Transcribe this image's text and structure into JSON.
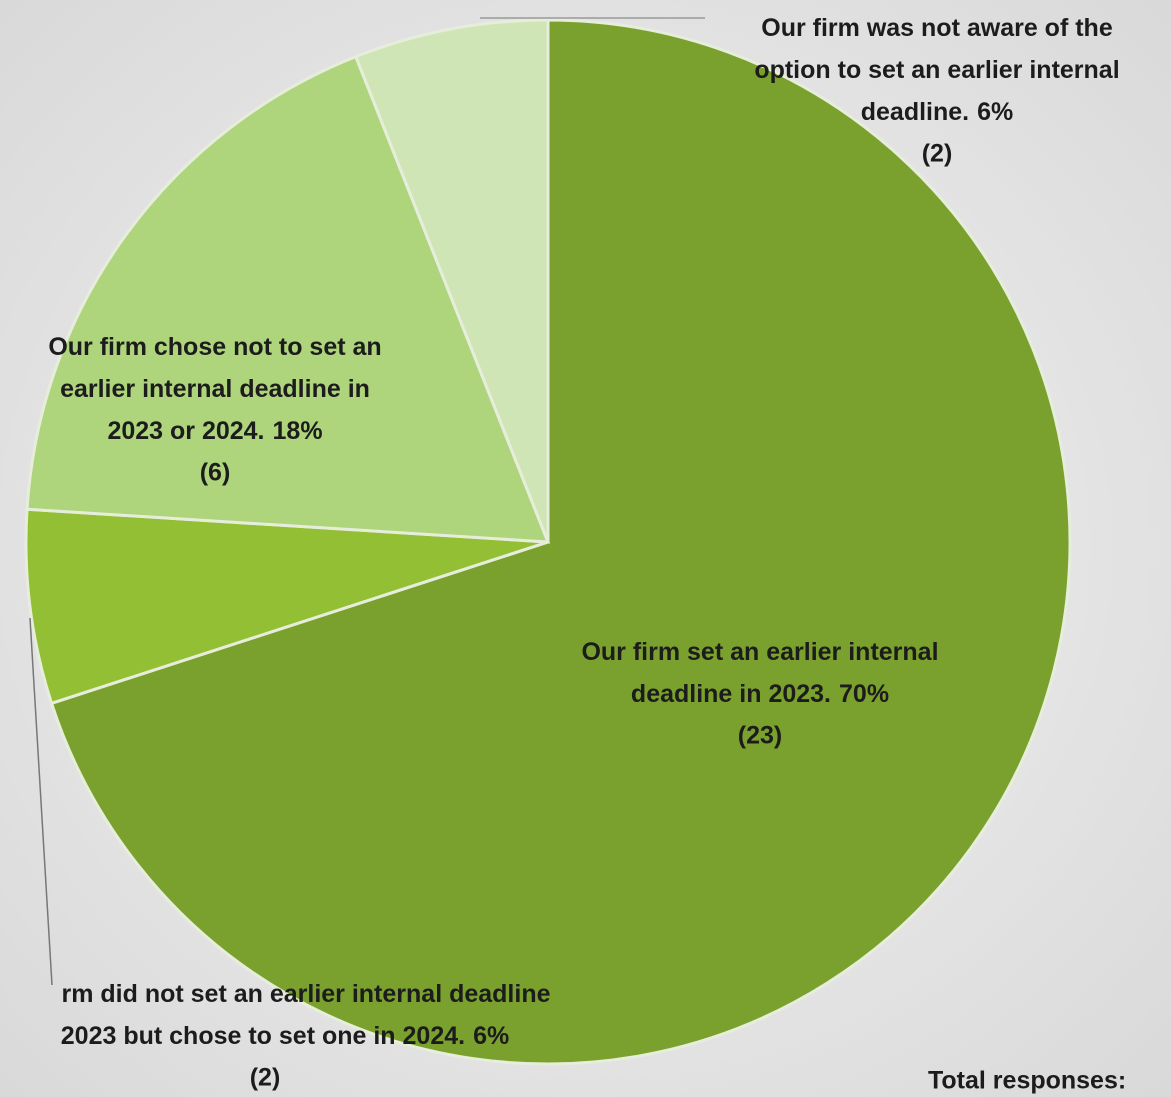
{
  "chart_data": {
    "type": "pie",
    "categories": [
      [
        "Our firm set an earlier internal",
        "deadline in 2023."
      ],
      [
        "rm did not set an earlier internal deadline",
        "2023 but chose to set one in 2024."
      ],
      [
        "Our firm chose not to set an",
        "earlier internal deadline in",
        "2023 or 2024."
      ],
      [
        "Our firm was not aware of the",
        "option to set an earlier internal",
        "deadline."
      ]
    ],
    "values": [
      70,
      6,
      18,
      6
    ],
    "value_labels": [
      "70%",
      "6%",
      "18%",
      "6%"
    ],
    "counts": [
      23,
      2,
      6,
      2
    ],
    "count_labels": [
      "(23)",
      "(2)",
      "(6)",
      "(2)"
    ],
    "colors": [
      "#7aa12d",
      "#93bf35",
      "#aed47c",
      "#cfe5b5"
    ],
    "note": "Total responses:"
  }
}
